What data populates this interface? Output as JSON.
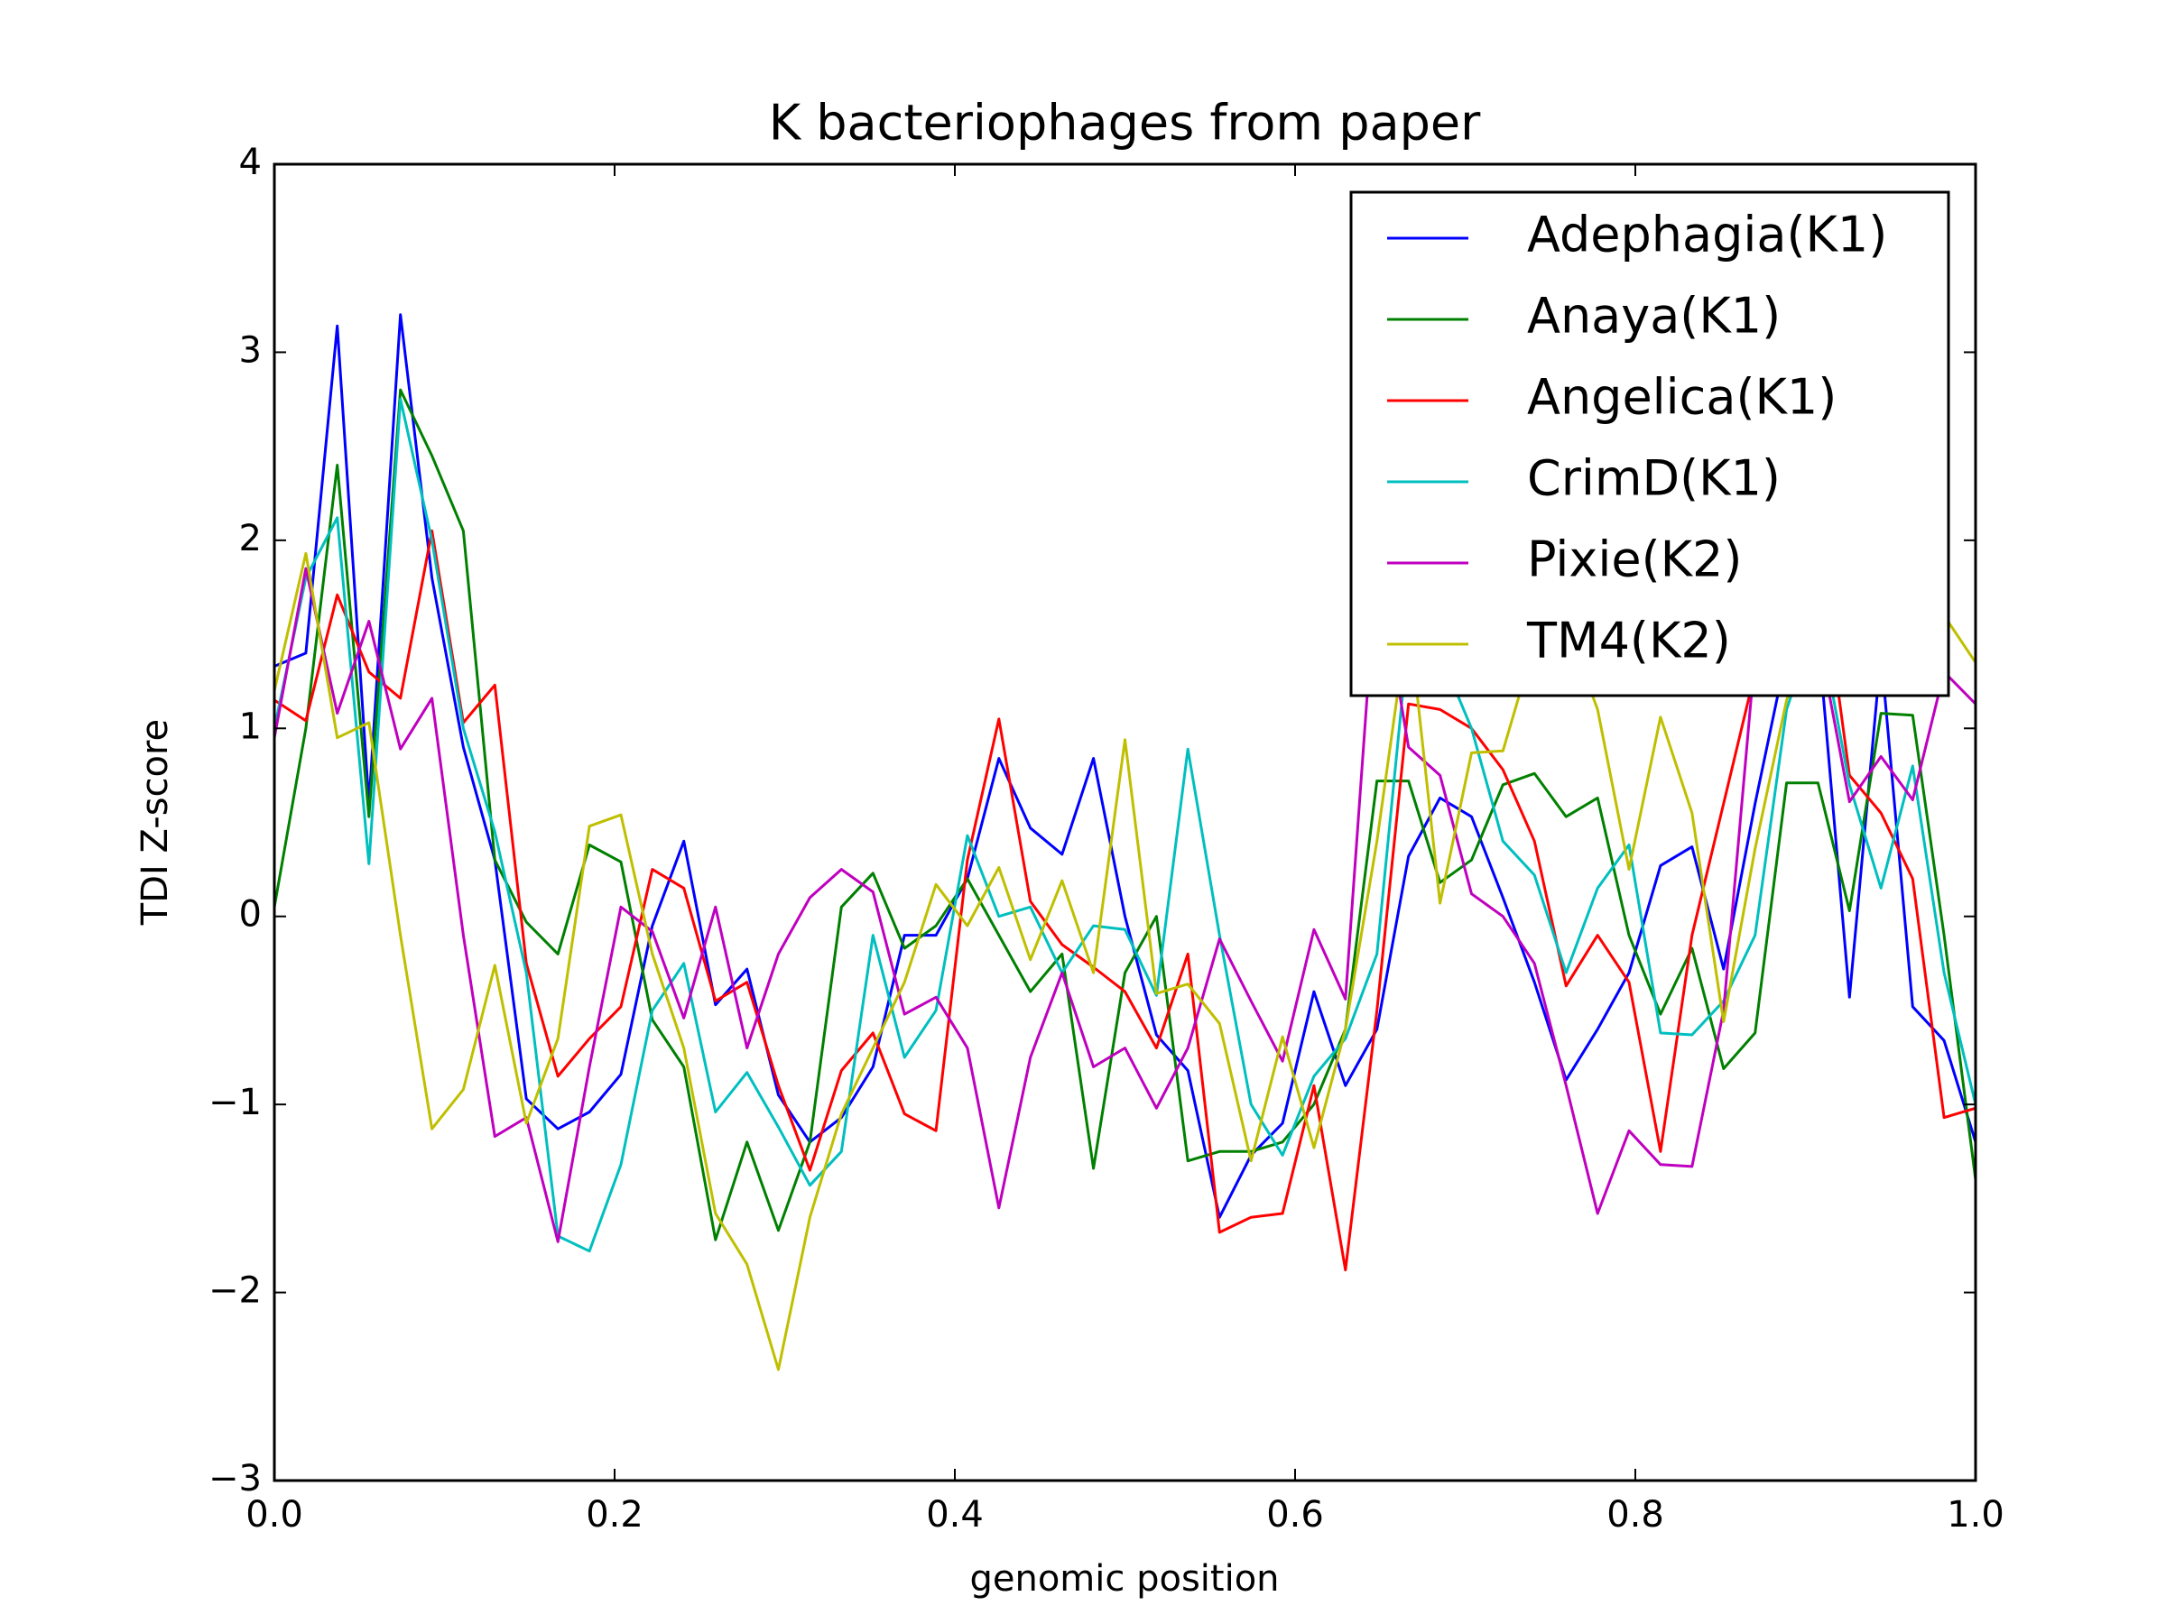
{
  "chart_data": {
    "type": "line",
    "title": "K bacteriophages from paper",
    "xlabel": "genomic position",
    "ylabel": "TDI Z-score",
    "xlim": [
      0,
      1
    ],
    "ylim": [
      -3,
      4
    ],
    "xticks": [
      {
        "value": 0,
        "label": "0.0"
      },
      {
        "value": 0.2,
        "label": "0.2"
      },
      {
        "value": 0.4,
        "label": "0.4"
      },
      {
        "value": 0.6,
        "label": "0.6"
      },
      {
        "value": 0.8,
        "label": "0.8"
      },
      {
        "value": 1,
        "label": "1.0"
      }
    ],
    "yticks": [
      {
        "value": -3,
        "label": "−3"
      },
      {
        "value": -2,
        "label": "−2"
      },
      {
        "value": -1,
        "label": "−1"
      },
      0,
      1,
      2,
      3,
      4
    ],
    "legend": "upper right",
    "x": [
      0,
      0.0185,
      0.037,
      0.0556,
      0.0741,
      0.0926,
      0.1111,
      0.1296,
      0.1481,
      0.1667,
      0.1852,
      0.2037,
      0.2222,
      0.2407,
      0.2593,
      0.2778,
      0.2963,
      0.3148,
      0.3333,
      0.3519,
      0.3704,
      0.3889,
      0.4074,
      0.4259,
      0.4444,
      0.463,
      0.4815,
      0.5,
      0.5185,
      0.537,
      0.5556,
      0.5741,
      0.5926,
      0.6111,
      0.6296,
      0.6481,
      0.6667,
      0.6852,
      0.7037,
      0.7222,
      0.7407,
      0.7593,
      0.7778,
      0.7963,
      0.8148,
      0.8333,
      0.8519,
      0.8704,
      0.8889,
      0.9074,
      0.9259,
      0.9444,
      0.963,
      0.9815,
      1
    ],
    "series": [
      {
        "name": "Adephagia(K1)",
        "color": "#0000ff",
        "values": [
          1.33,
          1.4,
          3.14,
          0.6,
          3.2,
          1.8,
          0.9,
          0.3,
          -0.97,
          -1.13,
          -1.04,
          -0.84,
          -0.05,
          0.4,
          -0.47,
          -0.28,
          -0.95,
          -1.2,
          -1.07,
          -0.8,
          -0.1,
          -0.1,
          0.2,
          0.84,
          0.47,
          0.33,
          0.84,
          0.0,
          -0.63,
          -0.82,
          -1.6,
          -1.27,
          -1.1,
          -0.4,
          -0.9,
          -0.6,
          0.32,
          0.63,
          0.53,
          0.1,
          -0.35,
          -0.87,
          -0.6,
          -0.3,
          0.27,
          0.37,
          -0.28,
          0.6,
          1.4,
          1.5,
          -0.43,
          1.4,
          -0.48,
          -0.66,
          -1.2
        ]
      },
      {
        "name": "Anaya(K1)",
        "color": "#008000",
        "values": [
          0.05,
          1.0,
          2.4,
          0.53,
          2.8,
          2.45,
          2.05,
          0.3,
          -0.03,
          -0.2,
          0.38,
          0.29,
          -0.55,
          -0.8,
          -1.72,
          -1.2,
          -1.67,
          -1.2,
          0.05,
          0.23,
          -0.17,
          -0.05,
          0.2,
          -0.1,
          -0.4,
          -0.2,
          -1.34,
          -0.3,
          0.0,
          -1.3,
          -1.25,
          -1.25,
          -1.2,
          -1.0,
          -0.6,
          0.72,
          0.72,
          0.18,
          0.3,
          0.7,
          0.76,
          0.53,
          0.63,
          -0.1,
          -0.52,
          -0.17,
          -0.81,
          -0.62,
          0.71,
          0.71,
          0.03,
          1.08,
          1.07,
          -0.1,
          -1.4
        ]
      },
      {
        "name": "Angelica(K1)",
        "color": "#ff0000",
        "values": [
          1.15,
          1.04,
          1.71,
          1.3,
          1.16,
          2.05,
          1.03,
          1.23,
          -0.25,
          -0.85,
          -0.65,
          -0.48,
          0.25,
          0.15,
          -0.45,
          -0.35,
          -0.9,
          -1.35,
          -0.82,
          -0.62,
          -1.05,
          -1.14,
          0.3,
          1.05,
          0.08,
          -0.15,
          -0.27,
          -0.4,
          -0.7,
          -0.2,
          -1.68,
          -1.6,
          -1.58,
          -0.9,
          -1.88,
          -0.5,
          1.13,
          1.1,
          1.0,
          0.78,
          0.4,
          -0.37,
          -0.1,
          -0.35,
          -1.25,
          -0.1,
          0.6,
          1.3,
          1.8,
          2.0,
          0.75,
          0.55,
          0.2,
          -1.07,
          -1.02
        ]
      },
      {
        "name": "CrimD(K1)",
        "color": "#00bfbf",
        "values": [
          1.0,
          1.8,
          2.12,
          0.28,
          2.75,
          2.0,
          1.0,
          0.45,
          -0.3,
          -1.7,
          -1.78,
          -1.32,
          -0.5,
          -0.25,
          -1.04,
          -0.83,
          -1.12,
          -1.43,
          -1.25,
          -0.1,
          -0.75,
          -0.5,
          0.43,
          0.0,
          0.05,
          -0.3,
          -0.05,
          -0.07,
          -0.42,
          0.89,
          -0.1,
          -1.0,
          -1.27,
          -0.85,
          -0.65,
          -0.2,
          1.5,
          1.4,
          1.0,
          0.4,
          0.22,
          -0.3,
          0.15,
          0.38,
          -0.62,
          -0.63,
          -0.45,
          -0.1,
          1.1,
          1.6,
          0.7,
          0.15,
          0.8,
          -0.3,
          -1.0
        ]
      },
      {
        "name": "Pixie(K2)",
        "color": "#bf00bf",
        "values": [
          0.95,
          1.85,
          1.08,
          1.57,
          0.89,
          1.16,
          -0.1,
          -1.17,
          -1.07,
          -1.73,
          -0.8,
          0.05,
          -0.08,
          -0.54,
          0.05,
          -0.7,
          -0.2,
          0.1,
          0.25,
          0.13,
          -0.52,
          -0.43,
          -0.7,
          -1.55,
          -0.75,
          -0.3,
          -0.8,
          -0.7,
          -1.02,
          -0.7,
          -0.12,
          -0.45,
          -0.77,
          -0.07,
          -0.44,
          1.9,
          0.9,
          0.75,
          0.12,
          0.0,
          -0.25,
          -0.9,
          -1.58,
          -1.14,
          -1.32,
          -1.33,
          -0.5,
          1.4,
          1.7,
          1.5,
          0.61,
          0.85,
          0.62,
          1.3,
          1.13
        ]
      },
      {
        "name": "TM4(K2)",
        "color": "#bfbf00",
        "values": [
          1.2,
          1.93,
          0.95,
          1.03,
          -0.1,
          -1.13,
          -0.92,
          -0.26,
          -1.1,
          -0.65,
          0.48,
          0.54,
          -0.2,
          -0.7,
          -1.58,
          -1.85,
          -2.41,
          -1.6,
          -1.05,
          -0.7,
          -0.35,
          0.17,
          -0.05,
          0.26,
          -0.23,
          0.19,
          -0.3,
          0.94,
          -0.41,
          -0.36,
          -0.57,
          -1.3,
          -0.64,
          -1.23,
          -0.6,
          0.4,
          1.6,
          0.07,
          0.87,
          0.88,
          1.45,
          1.55,
          1.1,
          0.25,
          1.06,
          0.55,
          -0.56,
          0.36,
          1.15,
          1.6,
          1.5,
          1.35,
          1.4,
          1.6,
          1.35
        ]
      }
    ]
  }
}
